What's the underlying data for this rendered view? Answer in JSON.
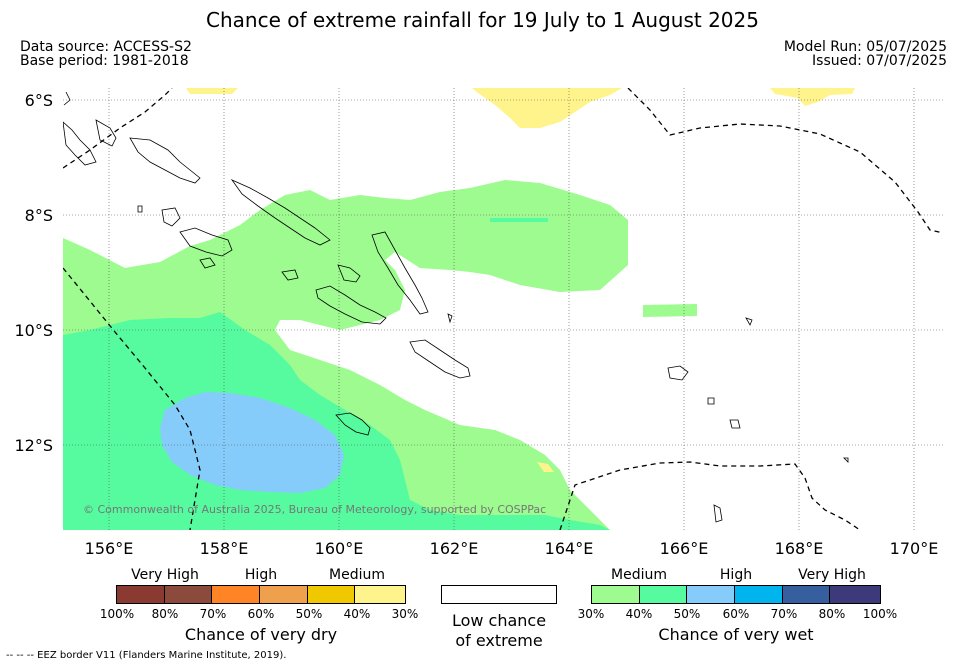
{
  "title": "Chance of extreme rainfall for 19 July to 1 August 2025",
  "meta": {
    "data_source": "Data source: ACCESS-S2",
    "base_period": "Base period: 1981-2018",
    "model_run": "Model Run: 05/07/2025",
    "issued": "Issued: 07/07/2025"
  },
  "map": {
    "lat_labels": [
      "6°S",
      "8°S",
      "10°S",
      "12°S"
    ],
    "lon_labels": [
      "156°E",
      "158°E",
      "160°E",
      "162°E",
      "164°E",
      "166°E",
      "168°E",
      "170°E"
    ],
    "copyright": "© Commonwealth of Australia 2025, Bureau of Meteorology, supported by COSPPac",
    "eez_note": "--  --  -- EEZ border V11 (Flanders Marine Institute, 2019).",
    "colors": {
      "very_dry_100": "#8b3a32",
      "very_dry_80": "#8b4a3c",
      "very_dry_70": "#ff8426",
      "very_dry_60": "#eea04c",
      "very_dry_50": "#f0c800",
      "very_dry_40": "#fff48c",
      "wet_medium_30": "#9dfb8f",
      "wet_medium_40": "#55fb9e",
      "wet_high_50": "#86ccfb",
      "wet_high_60": "#00b4ee",
      "wet_vhigh_70": "#375fa0",
      "wet_vhigh_80": "#3c3a7a"
    }
  },
  "legend": {
    "dry": {
      "groups": [
        "Very High",
        "High",
        "Medium"
      ],
      "ticks": [
        "100%",
        "80%",
        "70%",
        "60%",
        "50%",
        "40%",
        "30%"
      ],
      "title": "Chance of very dry"
    },
    "low": {
      "line1": "Low chance",
      "line2": "of extreme"
    },
    "wet": {
      "groups": [
        "Medium",
        "High",
        "Very High"
      ],
      "ticks": [
        "30%",
        "40%",
        "50%",
        "60%",
        "70%",
        "80%",
        "100%"
      ],
      "title": "Chance of very wet"
    }
  }
}
